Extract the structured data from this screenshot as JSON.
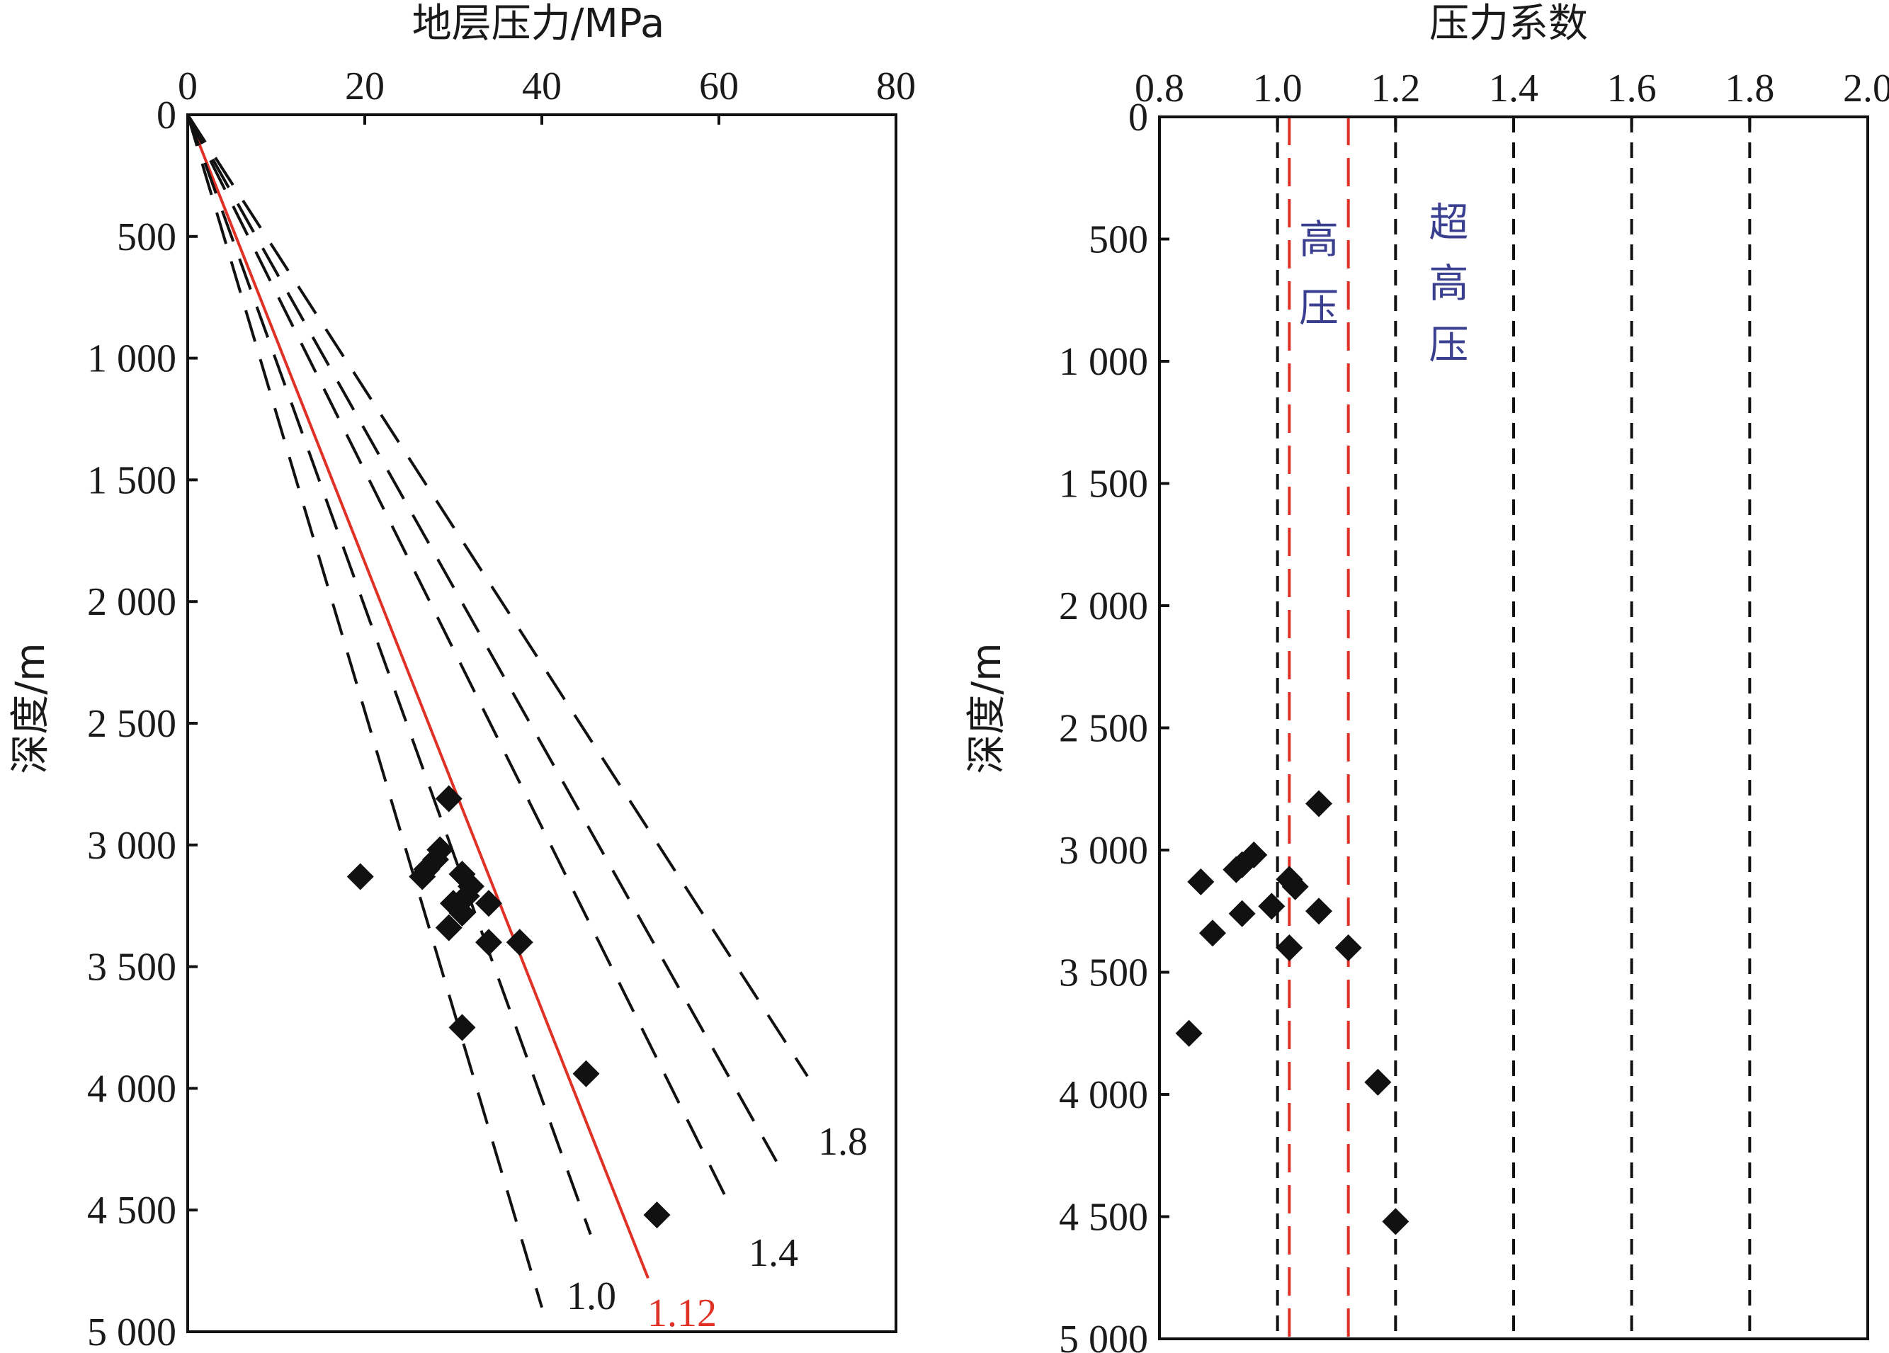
{
  "chart_data": [
    {
      "type": "scatter",
      "title": "地层压力/MPa",
      "ylabel": "深度/m",
      "xlim": [
        0,
        80
      ],
      "ylim": [
        0,
        5000
      ],
      "y_inverted": true,
      "x_axis_position": "top",
      "x_ticks": [
        0,
        20,
        40,
        60,
        80
      ],
      "x_tick_labels": [
        "0",
        "20",
        "40",
        "60",
        "80"
      ],
      "y_ticks": [
        0,
        500,
        1000,
        1500,
        2000,
        2500,
        3000,
        3500,
        4000,
        4500,
        5000
      ],
      "y_tick_labels": [
        "0",
        "500",
        "1 000",
        "1 500",
        "2 000",
        "2 500",
        "3 000",
        "3 500",
        "4 000",
        "4 500",
        "5 000"
      ],
      "grid": false,
      "reference_lines": [
        {
          "coef": 1.0,
          "end": [
            40,
            4900
          ],
          "color": "#111111",
          "dash": true,
          "label": "1.0"
        },
        {
          "coef": 1.12,
          "end": [
            52,
            4780
          ],
          "color": "#e03127",
          "dash": false,
          "label": "1.12"
        },
        {
          "coef": 1.2,
          "end": [
            45.5,
            4600
          ],
          "color": "#111111",
          "dash": true,
          "label": ""
        },
        {
          "coef": 1.4,
          "end": [
            61.5,
            4500
          ],
          "color": "#111111",
          "dash": true,
          "label": "1.4"
        },
        {
          "coef": 1.6,
          "end": [
            66.5,
            4300
          ],
          "color": "#111111",
          "dash": true,
          "label": ""
        },
        {
          "coef": 1.8,
          "end": [
            70,
            3950
          ],
          "color": "#111111",
          "dash": true,
          "label": "1.8"
        }
      ],
      "points": {
        "x": [
          29.5,
          19.5,
          28.5,
          28,
          27,
          26.5,
          31,
          32,
          31.5,
          30,
          34,
          31,
          29.5,
          34,
          37.5,
          31,
          45,
          53
        ],
        "y": [
          2810,
          3130,
          3020,
          3060,
          3100,
          3130,
          3120,
          3170,
          3210,
          3240,
          3240,
          3280,
          3340,
          3400,
          3400,
          3750,
          3940,
          4520
        ]
      }
    },
    {
      "type": "scatter",
      "title": "压力系数",
      "ylabel": "深度/m",
      "xlim": [
        0.8,
        2.0
      ],
      "ylim": [
        0,
        5000
      ],
      "y_inverted": true,
      "x_axis_position": "top",
      "x_ticks": [
        0.8,
        1.0,
        1.2,
        1.4,
        1.6,
        1.8,
        2.0
      ],
      "x_tick_labels": [
        "0.8",
        "1.0",
        "1.2",
        "1.4",
        "1.6",
        "1.8",
        "2.0"
      ],
      "y_ticks": [
        0,
        500,
        1000,
        1500,
        2000,
        2500,
        3000,
        3500,
        4000,
        4500,
        5000
      ],
      "y_tick_labels": [
        "0",
        "500",
        "1 000",
        "1 500",
        "2 000",
        "2 500",
        "3 000",
        "3 500",
        "4 000",
        "4 500",
        "5 000"
      ],
      "grid": false,
      "vertical_lines": [
        {
          "x": 1.0,
          "color": "#111111"
        },
        {
          "x": 1.02,
          "color": "#e03127"
        },
        {
          "x": 1.12,
          "color": "#e03127"
        },
        {
          "x": 1.2,
          "color": "#111111"
        },
        {
          "x": 1.4,
          "color": "#111111"
        },
        {
          "x": 1.6,
          "color": "#111111"
        },
        {
          "x": 1.8,
          "color": "#111111"
        }
      ],
      "zone_labels": [
        {
          "text": "高压",
          "x": 1.07,
          "y": [
            500,
            780
          ]
        },
        {
          "text": "超高压",
          "x": 1.29,
          "y": [
            430,
            680,
            930
          ]
        }
      ],
      "points": {
        "x": [
          1.07,
          0.96,
          0.94,
          0.93,
          0.87,
          1.02,
          1.03,
          0.99,
          0.94,
          1.07,
          0.89,
          1.02,
          1.12,
          0.85,
          1.17,
          1.2
        ],
        "y": [
          2810,
          3020,
          3060,
          3080,
          3130,
          3120,
          3150,
          3230,
          3260,
          3250,
          3340,
          3400,
          3400,
          3750,
          3950,
          4520
        ]
      }
    }
  ]
}
